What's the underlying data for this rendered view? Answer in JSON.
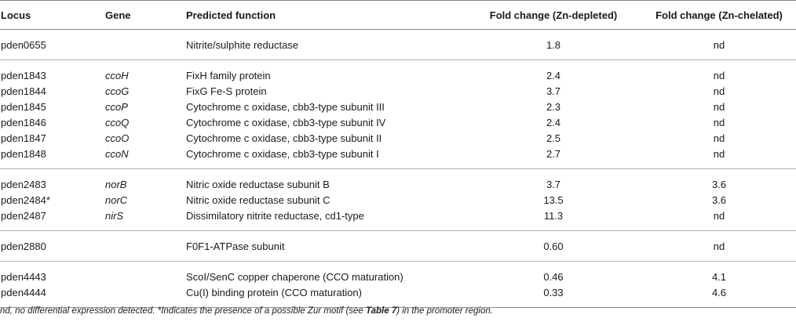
{
  "headers": [
    "Locus",
    "Gene",
    "Predicted function",
    "Fold change (Zn-depleted)",
    "Fold change (Zn-chelated)"
  ],
  "groups": [
    [
      {
        "locus": "pden0655",
        "gene": "",
        "function": "Nitrite/sulphite reductase",
        "zn_depleted": "1.8",
        "zn_chelated": "nd"
      }
    ],
    [
      {
        "locus": "pden1843",
        "gene": "ccoH",
        "function": "FixH family protein",
        "zn_depleted": "2.4",
        "zn_chelated": "nd"
      },
      {
        "locus": "pden1844",
        "gene": "ccoG",
        "function": "FixG Fe-S protein",
        "zn_depleted": "3.7",
        "zn_chelated": "nd"
      },
      {
        "locus": "pden1845",
        "gene": "ccoP",
        "function": "Cytochrome c oxidase, cbb3-type subunit III",
        "zn_depleted": "2.3",
        "zn_chelated": "nd"
      },
      {
        "locus": "pden1846",
        "gene": "ccoQ",
        "function": "Cytochrome c oxidase, cbb3-type subunit IV",
        "zn_depleted": "2.4",
        "zn_chelated": "nd"
      },
      {
        "locus": "pden1847",
        "gene": "ccoO",
        "function": "Cytochrome c oxidase, cbb3-type subunit II",
        "zn_depleted": "2.5",
        "zn_chelated": "nd"
      },
      {
        "locus": "pden1848",
        "gene": "ccoN",
        "function": "Cytochrome c oxidase, cbb3-type subunit I",
        "zn_depleted": "2.7",
        "zn_chelated": "nd"
      }
    ],
    [
      {
        "locus": "pden2483",
        "gene": "norB",
        "function": "Nitric oxide reductase subunit B",
        "zn_depleted": "3.7",
        "zn_chelated": "3.6"
      },
      {
        "locus": "pden2484*",
        "gene": "norC",
        "function": "Nitric oxide reductase subunit C",
        "zn_depleted": "13.5",
        "zn_chelated": "3.6"
      },
      {
        "locus": "pden2487",
        "gene": "nirS",
        "function": "Dissimilatory nitrite reductase, cd1-type",
        "zn_depleted": "11.3",
        "zn_chelated": "nd"
      }
    ],
    [
      {
        "locus": "pden2880",
        "gene": "",
        "function": "F0F1-ATPase subunit",
        "zn_depleted": "0.60",
        "zn_chelated": "nd"
      }
    ],
    [
      {
        "locus": "pden4443",
        "gene": "",
        "function": "ScoI/SenC copper chaperone (CCO maturation)",
        "zn_depleted": "0.46",
        "zn_chelated": "4.1"
      },
      {
        "locus": "pden4444",
        "gene": "",
        "function": "Cu(I) binding protein (CCO maturation)",
        "zn_depleted": "0.33",
        "zn_chelated": "4.6"
      }
    ]
  ],
  "footnote": {
    "part1": "nd, no differential expression detected. *Indicates the presence of a possible Zur motif (see ",
    "bold": "Table 7",
    "part2": ") in the promoter region."
  }
}
